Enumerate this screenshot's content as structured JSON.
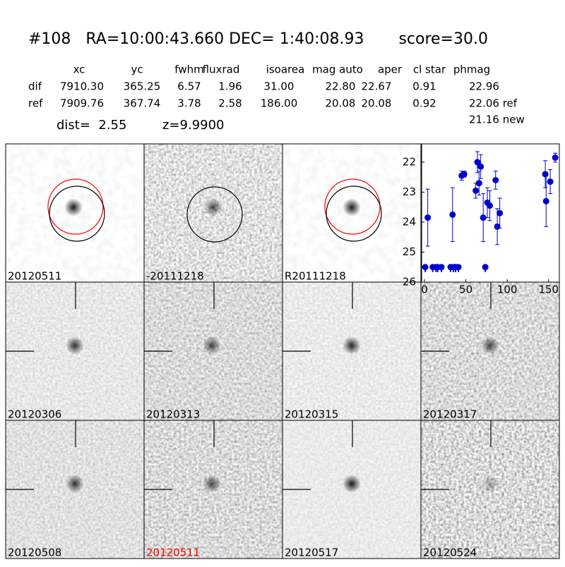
{
  "header": {
    "title": "#108   RA=10:00:43.660 DEC= 1:40:08.93       score=30.0",
    "columns": [
      "xc",
      "yc",
      "fwhm",
      "fluxrad",
      "isoarea",
      "mag auto",
      "aper",
      "cl star",
      "phmag"
    ],
    "rows": [
      {
        "label": "dif",
        "cells": [
          "7910.30",
          "365.25",
          "6.57",
          "1.96",
          "31.00",
          "22.80",
          "22.67",
          "0.91",
          "22.96"
        ]
      },
      {
        "label": "ref",
        "cells": [
          "7909.76",
          "367.74",
          "3.78",
          "2.58",
          "186.00",
          "20.08",
          "20.08",
          "0.92",
          "22.06 ref"
        ]
      }
    ],
    "extra": "21.16 new",
    "dist": "dist=  2.55",
    "z": "z=9.9900"
  },
  "stamps": [
    {
      "label": "20120511",
      "label_color": "#000000"
    },
    {
      "label": "-20111218",
      "label_color": "#000000"
    },
    {
      "label": "R20111218",
      "label_color": "#000000"
    },
    {
      "label": "20120306",
      "label_color": "#000000"
    },
    {
      "label": "20120313",
      "label_color": "#000000"
    },
    {
      "label": "20120315",
      "label_color": "#000000"
    },
    {
      "label": "20120317",
      "label_color": "#000000"
    },
    {
      "label": "20120508",
      "label_color": "#000000"
    },
    {
      "label": "20120511",
      "label_color": "#ff0000"
    },
    {
      "label": "20120517",
      "label_color": "#000000"
    },
    {
      "label": "20120524",
      "label_color": "#000000"
    }
  ],
  "chart_data": {
    "type": "scatter",
    "xlim": [
      -3.4,
      163
    ],
    "ylim": [
      26,
      21.39
    ],
    "xticks": [
      0,
      50,
      100,
      150
    ],
    "yticks": [
      22,
      23,
      24,
      25,
      26
    ],
    "series": [
      {
        "color": "#0000cc",
        "x": [
          4,
          34,
          45,
          48,
          62,
          64,
          66,
          68,
          71,
          76,
          79,
          86,
          88,
          91,
          146,
          147,
          152,
          158
        ],
        "values": [
          23.85,
          23.75,
          22.45,
          22.4,
          22.95,
          22.0,
          22.7,
          22.15,
          23.85,
          23.35,
          23.45,
          22.6,
          24.15,
          23.7,
          22.4,
          23.3,
          22.65,
          21.85
        ],
        "errors": [
          0.95,
          0.9,
          0.15,
          0.1,
          0.25,
          0.35,
          0.4,
          0.4,
          0.8,
          0.5,
          0.5,
          0.3,
          0.6,
          0.5,
          0.45,
          0.85,
          0.4,
          0.15
        ]
      },
      {
        "color": "#0000cc",
        "x": [
          1,
          10,
          14,
          16,
          20.5,
          31.6,
          35,
          37.6,
          41,
          73.5
        ],
        "values": [
          25.5,
          25.5,
          25.5,
          25.5,
          25.5,
          25.5,
          25.5,
          25.5,
          25.5,
          25.5
        ]
      }
    ]
  }
}
